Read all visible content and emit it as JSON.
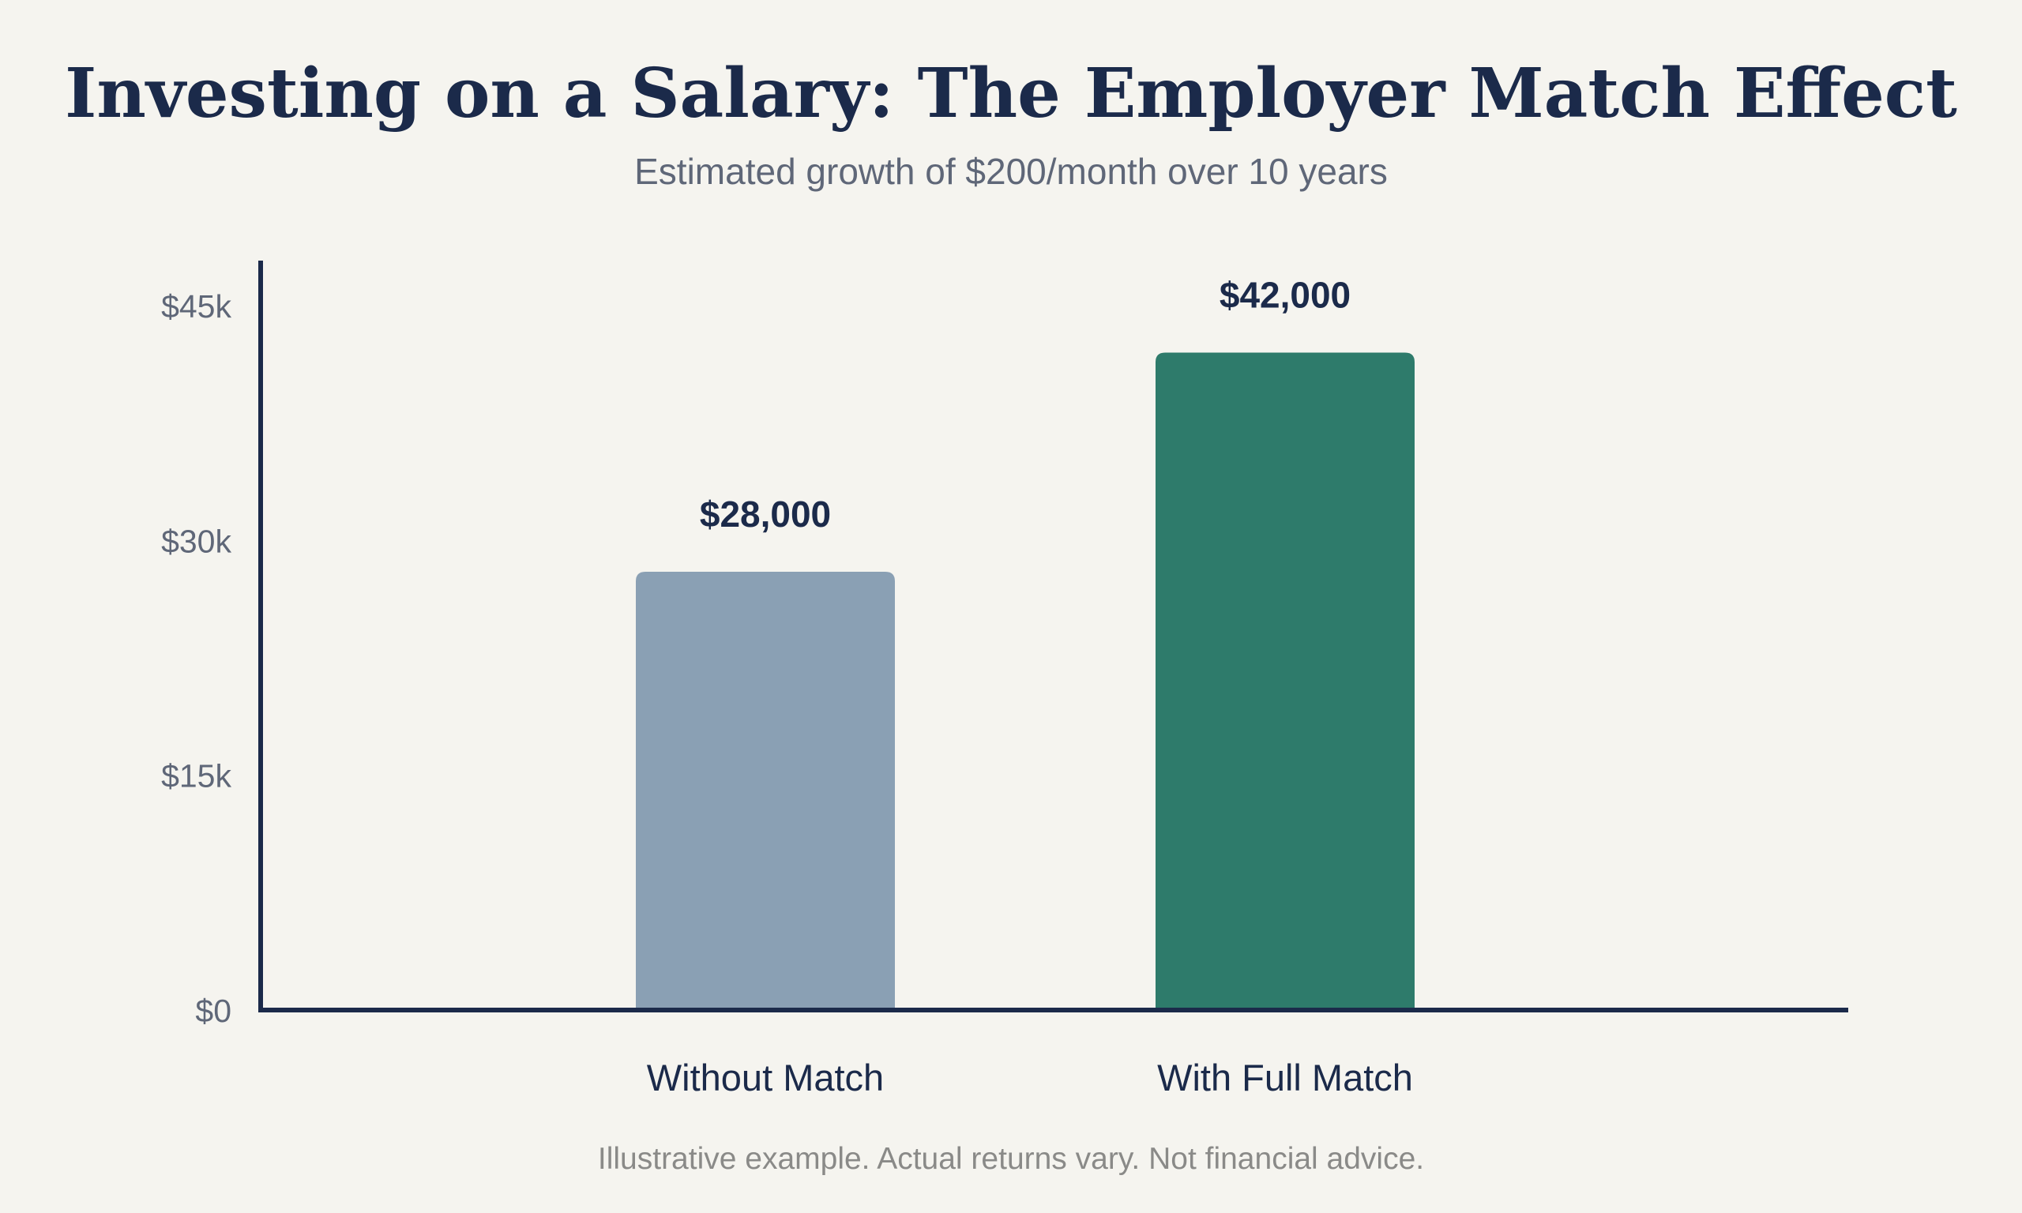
{
  "chart_data": {
    "type": "bar",
    "title": "Investing on a Salary: The Employer Match Effect",
    "subtitle": "Estimated growth of $200/month over 10 years",
    "categories": [
      "Without Match",
      "With Full Match"
    ],
    "values": [
      28000,
      42000
    ],
    "value_labels": [
      "$28,000",
      "$42,000"
    ],
    "bar_colors": [
      "#8aa0b4",
      "#2e7b6b"
    ],
    "ylim": [
      0,
      45000
    ],
    "yticks": [
      0,
      15000,
      30000,
      45000
    ],
    "ytick_labels": [
      "$0",
      "$15k",
      "$30k",
      "$45k"
    ],
    "xlabel": "",
    "ylabel": "",
    "grid": false,
    "footnote": "Illustrative example. Actual returns vary. Not financial advice."
  },
  "colors": {
    "background": "#f5f4ef",
    "axis": "#1b2a4a",
    "text_primary": "#1b2a4a",
    "text_secondary": "#5f6778",
    "footnote": "#8a8a88"
  }
}
